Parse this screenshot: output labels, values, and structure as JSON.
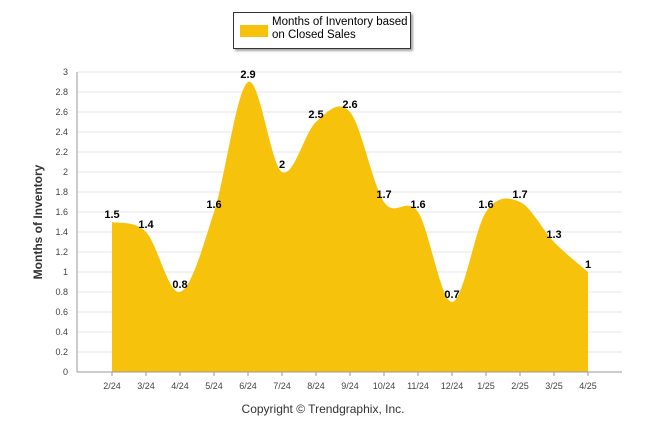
{
  "colors": {
    "series": "#f7c20c",
    "grid": "#e6e6e6",
    "axis": "#999999"
  },
  "copyright": "Copyright © Trendgraphix, Inc.",
  "chart_data": {
    "type": "area",
    "categories": [
      "2/24",
      "3/24",
      "4/24",
      "5/24",
      "6/24",
      "7/24",
      "8/24",
      "9/24",
      "10/24",
      "11/24",
      "12/24",
      "1/25",
      "2/25",
      "3/25",
      "4/25"
    ],
    "series": [
      {
        "name": "Months of Inventory based on Closed Sales",
        "values": [
          1.5,
          1.4,
          0.8,
          1.6,
          2.9,
          2,
          2.5,
          2.6,
          1.7,
          1.6,
          0.7,
          1.6,
          1.7,
          1.3,
          1
        ]
      }
    ],
    "ylabel": "Months of Inventory",
    "yticks": [
      "0",
      "0.2",
      "0.4",
      "0.6",
      "0.8",
      "1",
      "1.2",
      "1.4",
      "1.6",
      "1.8",
      "2",
      "2.2",
      "2.4",
      "2.6",
      "2.8",
      "3"
    ],
    "ylim": [
      0,
      3
    ],
    "grid": true,
    "legend": "top-center"
  }
}
